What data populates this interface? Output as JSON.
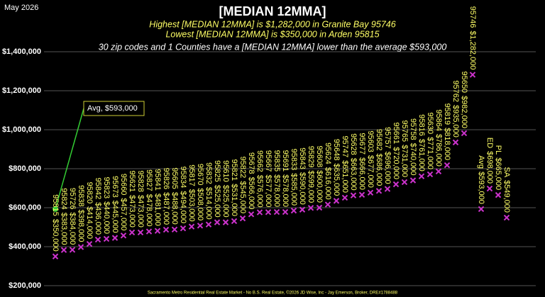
{
  "chart_data": {
    "type": "scatter",
    "date_label": "May 2026",
    "title": "[MEDIAN 12MMA]",
    "subtitle_lines": [
      "Highest [MEDIAN 12MMA] is $1,282,000 in Granite Bay 95746",
      "Lowest [MEDIAN 12MMA] is $350,000 in Arden 95815"
    ],
    "note": "30 zip codes and 1 Counties have a [MEDIAN 12MMA] lower than the average $593,000",
    "footer": "Sacramento Metro Residential Real Estate Market - No B.S. Real Estate, ©2026 JD Wise, Inc - Jay Emerson, Broker, DRE#1788488",
    "categories": [
      "95815",
      "95824",
      "95726",
      "95838",
      "95820",
      "95842",
      "95823",
      "95673",
      "95660",
      "95621",
      "95828",
      "95827",
      "95841",
      "95826",
      "95605",
      "95834",
      "95817",
      "95670",
      "95832",
      "95825",
      "95610",
      "95821",
      "95822",
      "95678",
      "95662",
      "95667",
      "95835",
      "95691",
      "95833",
      "95843",
      "95829",
      "95608",
      "95624",
      "95648",
      "95747",
      "95628",
      "95677",
      "95603",
      "95682",
      "95757",
      "95661",
      "95765",
      "95758",
      "95816",
      "95630",
      "95864",
      "95819",
      "95762",
      "95650",
      "95746",
      "Avg",
      "ED",
      "PL",
      "SA"
    ],
    "values": [
      350000,
      383000,
      384000,
      398000,
      414000,
      436000,
      440000,
      445000,
      457000,
      473000,
      473000,
      478000,
      481000,
      487000,
      488000,
      494000,
      503000,
      508000,
      514000,
      525000,
      525000,
      531000,
      545000,
      566000,
      576000,
      577000,
      578000,
      578000,
      585000,
      590000,
      599000,
      600000,
      616000,
      635000,
      651000,
      663000,
      666000,
      677000,
      686000,
      696000,
      720000,
      731000,
      740000,
      761000,
      771000,
      786000,
      818000,
      935000,
      982000,
      1282000,
      593000,
      698000,
      665000,
      549000
    ],
    "value_labels": [
      "$350,000",
      "$383,000",
      "$384,000",
      "$398,000",
      "$414,000",
      "$436,000",
      "$440,000",
      "$445,000",
      "$457,000",
      "$473,000",
      "$473,000",
      "$478,000",
      "$481,000",
      "$487,000",
      "$488,000",
      "$494,000",
      "$503,000",
      "$508,000",
      "$514,000",
      "$525,000",
      "$525,000",
      "$531,000",
      "$545,000",
      "$566,000",
      "$576,000",
      "$577,000",
      "$578,000",
      "$578,000",
      "$585,000",
      "$590,000",
      "$599,000",
      "$600,000",
      "$616,000",
      "$635,000",
      "$651,000",
      "$663,000",
      "$666,000",
      "$677,000",
      "$686,000",
      "$696,000",
      "$720,000",
      "$731,000",
      "$740,000",
      "$761,000",
      "$771,000",
      "$786,000",
      "$818,000",
      "$935,000",
      "$982,000",
      "$1,282,000",
      "$593,000",
      "$698,000",
      "$665,000",
      "$549,000"
    ],
    "color": "#cc33cc",
    "average": {
      "label": "Avg,  $593,000",
      "value": 593000,
      "color": "#33cc33"
    },
    "ylim": [
      200000,
      1400000
    ],
    "yticks": [
      {
        "value": 200000,
        "label": "$200,000"
      },
      {
        "value": 400000,
        "label": "$400,000"
      },
      {
        "value": 600000,
        "label": "$600,000"
      },
      {
        "value": 800000,
        "label": "$800,000"
      },
      {
        "value": 1000000,
        "label": "$1,000,000"
      },
      {
        "value": 1200000,
        "label": "$1,200,000"
      },
      {
        "value": 1400000,
        "label": "$1,400,000"
      }
    ],
    "grid": true
  }
}
